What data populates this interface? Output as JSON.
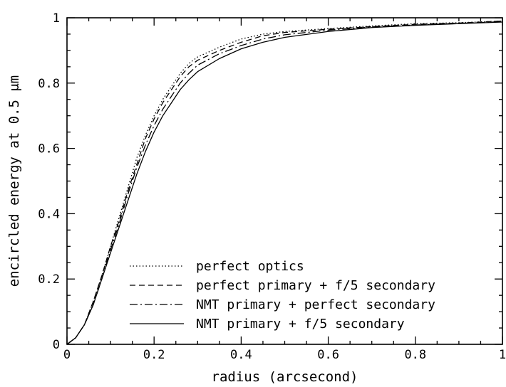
{
  "chart_data": {
    "type": "line",
    "title": "",
    "xlabel": "radius (arcsecond)",
    "ylabel": "encircled energy at 0.5 μm",
    "xlim": [
      0,
      1
    ],
    "ylim": [
      0,
      1
    ],
    "x_ticks": [
      "0",
      "0.2",
      "0.4",
      "0.6",
      "0.8",
      "1"
    ],
    "y_ticks": [
      "0",
      "0.2",
      "0.4",
      "0.6",
      "0.8",
      "1"
    ],
    "grid": false,
    "legend_position": "bottom-center",
    "series": [
      {
        "name": "perfect optics",
        "style": "dotted",
        "x": [
          0,
          0.02,
          0.04,
          0.06,
          0.08,
          0.1,
          0.12,
          0.14,
          0.16,
          0.18,
          0.2,
          0.22,
          0.24,
          0.26,
          0.28,
          0.3,
          0.35,
          0.4,
          0.45,
          0.5,
          0.6,
          0.7,
          0.8,
          0.9,
          1.0
        ],
        "y": [
          0,
          0.02,
          0.06,
          0.13,
          0.21,
          0.3,
          0.39,
          0.48,
          0.57,
          0.64,
          0.7,
          0.75,
          0.79,
          0.83,
          0.86,
          0.88,
          0.91,
          0.935,
          0.95,
          0.958,
          0.967,
          0.975,
          0.982,
          0.985,
          0.99
        ]
      },
      {
        "name": "perfect primary + f/5 secondary",
        "style": "dashed",
        "x": [
          0,
          0.02,
          0.04,
          0.06,
          0.08,
          0.1,
          0.12,
          0.14,
          0.16,
          0.18,
          0.2,
          0.22,
          0.24,
          0.26,
          0.28,
          0.3,
          0.35,
          0.4,
          0.45,
          0.5,
          0.6,
          0.7,
          0.8,
          0.9,
          1.0
        ],
        "y": [
          0,
          0.02,
          0.06,
          0.13,
          0.21,
          0.3,
          0.38,
          0.47,
          0.55,
          0.63,
          0.69,
          0.74,
          0.78,
          0.82,
          0.85,
          0.87,
          0.9,
          0.925,
          0.945,
          0.955,
          0.965,
          0.973,
          0.98,
          0.984,
          0.99
        ]
      },
      {
        "name": "NMT primary + perfect secondary",
        "style": "dashdot",
        "x": [
          0,
          0.02,
          0.04,
          0.06,
          0.08,
          0.1,
          0.12,
          0.14,
          0.16,
          0.18,
          0.2,
          0.22,
          0.24,
          0.26,
          0.28,
          0.3,
          0.35,
          0.4,
          0.45,
          0.5,
          0.6,
          0.7,
          0.8,
          0.9,
          1.0
        ],
        "y": [
          0,
          0.02,
          0.06,
          0.12,
          0.2,
          0.29,
          0.37,
          0.46,
          0.54,
          0.61,
          0.67,
          0.72,
          0.76,
          0.8,
          0.83,
          0.855,
          0.89,
          0.915,
          0.935,
          0.948,
          0.962,
          0.972,
          0.978,
          0.983,
          0.988
        ]
      },
      {
        "name": "NMT primary + f/5 secondary",
        "style": "solid",
        "x": [
          0,
          0.02,
          0.04,
          0.06,
          0.08,
          0.1,
          0.12,
          0.14,
          0.16,
          0.18,
          0.2,
          0.22,
          0.24,
          0.26,
          0.28,
          0.3,
          0.35,
          0.4,
          0.45,
          0.5,
          0.6,
          0.7,
          0.8,
          0.9,
          1.0
        ],
        "y": [
          0,
          0.02,
          0.06,
          0.12,
          0.2,
          0.28,
          0.36,
          0.44,
          0.52,
          0.59,
          0.65,
          0.7,
          0.74,
          0.78,
          0.81,
          0.835,
          0.875,
          0.905,
          0.925,
          0.94,
          0.958,
          0.97,
          0.977,
          0.982,
          0.987
        ]
      }
    ]
  }
}
